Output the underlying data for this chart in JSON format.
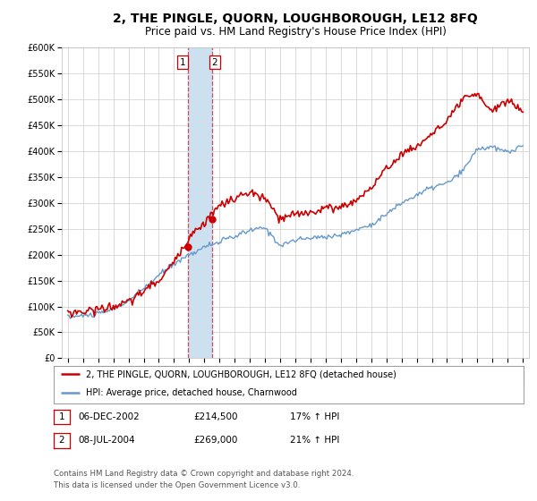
{
  "title": "2, THE PINGLE, QUORN, LOUGHBOROUGH, LE12 8FQ",
  "subtitle": "Price paid vs. HM Land Registry's House Price Index (HPI)",
  "ylim": [
    0,
    600000
  ],
  "yticks": [
    0,
    50000,
    100000,
    150000,
    200000,
    250000,
    300000,
    350000,
    400000,
    450000,
    500000,
    550000,
    600000
  ],
  "hpi_color": "#6699cc",
  "price_color": "#cc0000",
  "point_color": "#cc0000",
  "purchase1_date_num": 2002.92,
  "purchase1_price": 214500,
  "purchase2_date_num": 2004.52,
  "purchase2_price": 269000,
  "vspan_color": "#cce0f0",
  "vline_color": "#cc0000",
  "grid_color": "#cccccc",
  "bg_color": "#ffffff",
  "legend_label_price": "2, THE PINGLE, QUORN, LOUGHBOROUGH, LE12 8FQ (detached house)",
  "legend_label_hpi": "HPI: Average price, detached house, Charnwood",
  "table_row1": [
    "1",
    "06-DEC-2002",
    "£214,500",
    "17% ↑ HPI"
  ],
  "table_row2": [
    "2",
    "08-JUL-2004",
    "£269,000",
    "21% ↑ HPI"
  ],
  "footer": "Contains HM Land Registry data © Crown copyright and database right 2024.\nThis data is licensed under the Open Government Licence v3.0.",
  "title_fontsize": 10,
  "subtitle_fontsize": 8.5,
  "year_start": 1995,
  "year_end": 2025
}
